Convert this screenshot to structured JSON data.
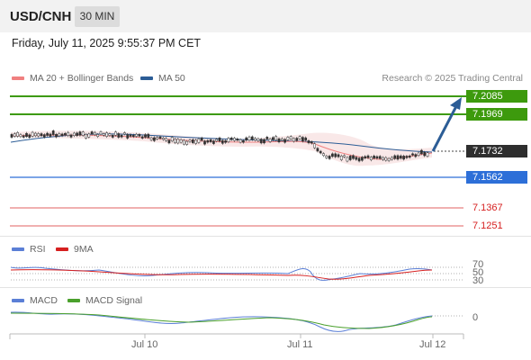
{
  "header": {
    "pair": "USD/CNH",
    "timeframe": "30 MIN"
  },
  "datetime": "Friday, July 11, 2025 9:55:37 PM CET",
  "main_legend": [
    {
      "label": "MA 20 + Bollinger Bands",
      "color": "#f08080"
    },
    {
      "label": "MA 50",
      "color": "#2c5d96"
    }
  ],
  "credit": "Research © 2025 Trading Central",
  "price_levels": {
    "r2": "7.2085",
    "r1": "7.1969",
    "last": "7.1732",
    "s1": "7.1562",
    "s2": "7.1367",
    "s3": "7.1251"
  },
  "rsi_legend": [
    {
      "label": "RSI",
      "color": "#5b7fd6"
    },
    {
      "label": "9MA",
      "color": "#d62020"
    }
  ],
  "rsi_levels": {
    "upper": "70",
    "mid": "50",
    "lower": "30"
  },
  "macd_legend": [
    {
      "label": "MACD",
      "color": "#5b7fd6"
    },
    {
      "label": "MACD Signal",
      "color": "#4aa02c"
    }
  ],
  "macd_zero": "0",
  "x_axis": [
    "Jul 10",
    "Jul 11",
    "Jul 12"
  ],
  "colors": {
    "green": "#3d9a0d",
    "blue": "#2d6fd8",
    "red": "#e06060",
    "dark": "#2e2e2e",
    "arrow": "#2c5d96"
  }
}
